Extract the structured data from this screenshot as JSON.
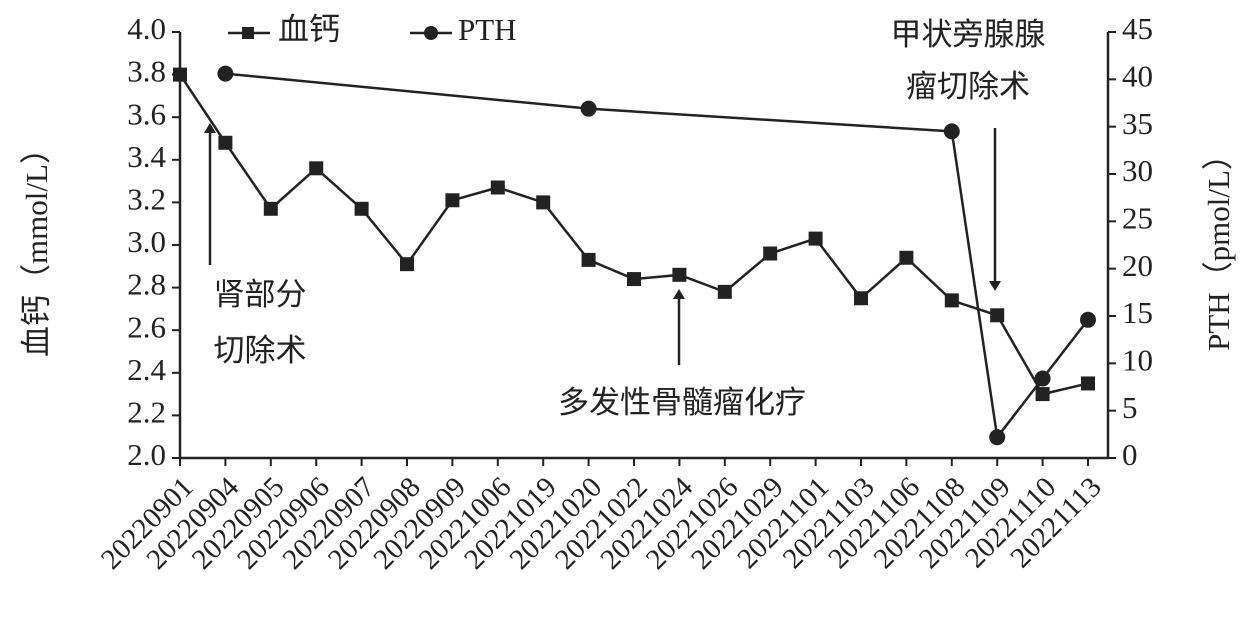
{
  "chart_data": {
    "type": "line",
    "categories": [
      "20220901",
      "20220904",
      "20220905",
      "20220906",
      "20220907",
      "20220908",
      "20220909",
      "20221006",
      "20221019",
      "20221020",
      "20221022",
      "20221024",
      "20221026",
      "20221029",
      "20221101",
      "20221103",
      "20221106",
      "20221108",
      "20221109",
      "20221110",
      "20221113"
    ],
    "series": [
      {
        "name": "血钙",
        "color": "#222222",
        "marker": "square",
        "values": [
          3.8,
          3.48,
          3.17,
          3.36,
          3.17,
          2.91,
          3.21,
          3.27,
          3.2,
          2.93,
          2.84,
          2.86,
          2.78,
          2.96,
          3.03,
          2.75,
          2.94,
          2.74,
          2.67,
          2.3,
          2.35
        ]
      },
      {
        "name": "PTH",
        "color": "#222222",
        "marker": "circle",
        "axis": "y2",
        "values": [
          null,
          40.6,
          null,
          null,
          null,
          null,
          null,
          null,
          null,
          36.9,
          null,
          null,
          null,
          null,
          null,
          null,
          null,
          34.5,
          2.2,
          8.4,
          14.6
        ]
      }
    ],
    "ylabel": "血钙（mmol/L）",
    "y2label": "PTH（pmol/L）",
    "ylim": [
      2,
      4
    ],
    "yticks": [
      {
        "value": 2,
        "label": "2.0"
      },
      2.2,
      2.4,
      2.6,
      2.8,
      {
        "value": 3,
        "label": "3.0"
      },
      3.2,
      3.4,
      3.6,
      3.8,
      {
        "value": 4,
        "label": "4.0"
      }
    ],
    "y2lim": [
      0,
      45
    ],
    "y2ticks": [
      0,
      5,
      10,
      15,
      20,
      25,
      30,
      35,
      40,
      45
    ],
    "annotations": [
      {
        "lines": [
          "肾部分",
          "切除术"
        ]
      },
      {
        "lines": [
          "多发性骨髓瘤化疗"
        ]
      },
      {
        "lines": [
          "甲状旁腺腺",
          "瘤切除术"
        ]
      }
    ]
  }
}
